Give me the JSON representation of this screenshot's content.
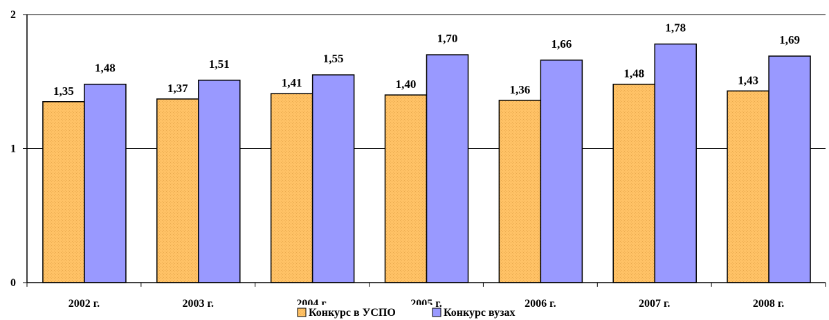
{
  "chart_data": {
    "type": "bar",
    "title": "",
    "xlabel": "",
    "ylabel": "",
    "categories": [
      "2002 г.",
      "2003 г.",
      "2004 г.",
      "2005 г.",
      "2006 г.",
      "2007 г.",
      "2008 г."
    ],
    "series": [
      {
        "name": "Конкурс в УСПО",
        "color": "#FFC266",
        "values": [
          1.35,
          1.37,
          1.41,
          1.4,
          1.36,
          1.48,
          1.43
        ],
        "labels": [
          "1,35",
          "1,37",
          "1,41",
          "1,40",
          "1,36",
          "1,48",
          "1,43"
        ]
      },
      {
        "name": "Конкурс вузах",
        "color": "#9999FF",
        "values": [
          1.48,
          1.51,
          1.55,
          1.7,
          1.66,
          1.78,
          1.69
        ],
        "labels": [
          "1,48",
          "1,51",
          "1,55",
          "1,70",
          "1,66",
          "1,78",
          "1,69"
        ]
      }
    ],
    "ylim": [
      0,
      2
    ],
    "yticks": [
      0,
      1,
      2
    ],
    "ytick_labels": [
      "0",
      "1",
      "2"
    ],
    "grid": true,
    "legend": "bottom-center"
  }
}
